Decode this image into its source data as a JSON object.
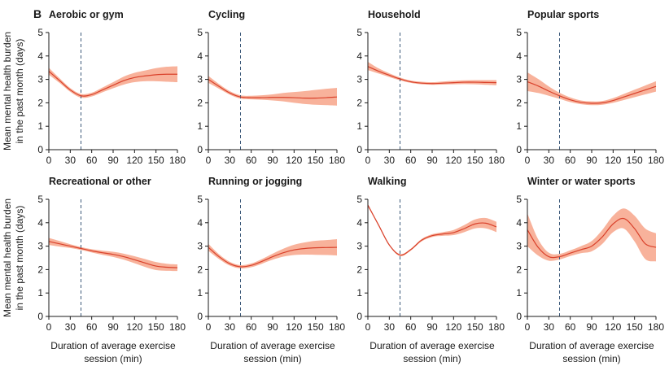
{
  "figure": {
    "panel_letter": "B",
    "x_ticks": [
      "0",
      "30",
      "60",
      "90",
      "120",
      "150",
      "180"
    ],
    "y_ticks": [
      "0",
      "1",
      "2",
      "3",
      "4",
      "5"
    ],
    "ylabel_lines": [
      "Mean mental health burden",
      "in the past month (days)"
    ],
    "xlabel_lines": [
      "Duration of average exercise",
      "session (min)"
    ],
    "colors": {
      "band": "#f7a58a",
      "line": "#d9412b",
      "reference": "#3d5a7a",
      "axis": "#1a1a1a"
    }
  },
  "chart_data": [
    {
      "type": "line",
      "title": "Aerobic or gym",
      "xlim": [
        0,
        180
      ],
      "ylim": [
        0,
        5
      ],
      "reference_x": 45,
      "x": [
        0,
        15,
        30,
        45,
        60,
        75,
        90,
        105,
        120,
        135,
        150,
        165,
        180
      ],
      "y": [
        3.35,
        2.95,
        2.55,
        2.3,
        2.35,
        2.55,
        2.75,
        2.95,
        3.08,
        3.15,
        3.2,
        3.22,
        3.22
      ],
      "lower": [
        3.2,
        2.85,
        2.47,
        2.22,
        2.27,
        2.45,
        2.62,
        2.78,
        2.88,
        2.92,
        2.92,
        2.9,
        2.88
      ],
      "upper": [
        3.5,
        3.05,
        2.63,
        2.38,
        2.43,
        2.65,
        2.88,
        3.12,
        3.28,
        3.38,
        3.48,
        3.54,
        3.56
      ]
    },
    {
      "type": "line",
      "title": "Cycling",
      "xlim": [
        0,
        180
      ],
      "ylim": [
        0,
        5
      ],
      "reference_x": 45,
      "x": [
        0,
        15,
        30,
        45,
        60,
        75,
        90,
        105,
        120,
        135,
        150,
        165,
        180
      ],
      "y": [
        3.0,
        2.7,
        2.42,
        2.25,
        2.22,
        2.22,
        2.23,
        2.23,
        2.22,
        2.2,
        2.2,
        2.22,
        2.25
      ],
      "lower": [
        2.85,
        2.6,
        2.35,
        2.18,
        2.15,
        2.13,
        2.1,
        2.06,
        2.0,
        1.95,
        1.92,
        1.9,
        1.88
      ],
      "upper": [
        3.15,
        2.8,
        2.5,
        2.32,
        2.3,
        2.32,
        2.36,
        2.42,
        2.46,
        2.5,
        2.55,
        2.6,
        2.64
      ]
    },
    {
      "type": "line",
      "title": "Household",
      "xlim": [
        0,
        180
      ],
      "ylim": [
        0,
        5
      ],
      "reference_x": 45,
      "x": [
        0,
        15,
        30,
        45,
        60,
        75,
        90,
        105,
        120,
        135,
        150,
        165,
        180
      ],
      "y": [
        3.55,
        3.35,
        3.18,
        3.02,
        2.9,
        2.84,
        2.82,
        2.84,
        2.86,
        2.88,
        2.88,
        2.87,
        2.86
      ],
      "lower": [
        3.4,
        3.25,
        3.1,
        2.96,
        2.85,
        2.79,
        2.77,
        2.78,
        2.79,
        2.8,
        2.79,
        2.77,
        2.75
      ],
      "upper": [
        3.75,
        3.47,
        3.26,
        3.08,
        2.95,
        2.9,
        2.88,
        2.91,
        2.94,
        2.96,
        2.97,
        2.97,
        2.97
      ]
    },
    {
      "type": "line",
      "title": "Popular sports",
      "xlim": [
        0,
        180
      ],
      "ylim": [
        0,
        5
      ],
      "reference_x": 45,
      "x": [
        0,
        15,
        30,
        45,
        60,
        75,
        90,
        105,
        120,
        135,
        150,
        165,
        180
      ],
      "y": [
        2.9,
        2.72,
        2.5,
        2.3,
        2.13,
        2.02,
        1.98,
        2.0,
        2.1,
        2.25,
        2.4,
        2.55,
        2.7
      ],
      "lower": [
        2.5,
        2.42,
        2.3,
        2.17,
        2.03,
        1.94,
        1.9,
        1.92,
        2.0,
        2.12,
        2.24,
        2.36,
        2.48
      ],
      "upper": [
        3.3,
        3.02,
        2.7,
        2.43,
        2.23,
        2.1,
        2.06,
        2.08,
        2.2,
        2.38,
        2.56,
        2.74,
        2.92
      ]
    },
    {
      "type": "line",
      "title": "Recreational or other",
      "xlim": [
        0,
        180
      ],
      "ylim": [
        0,
        5
      ],
      "reference_x": 45,
      "x": [
        0,
        15,
        30,
        45,
        60,
        75,
        90,
        105,
        120,
        135,
        150,
        165,
        180
      ],
      "y": [
        3.2,
        3.1,
        3.0,
        2.9,
        2.8,
        2.72,
        2.65,
        2.55,
        2.42,
        2.28,
        2.15,
        2.1,
        2.08
      ],
      "lower": [
        3.05,
        2.98,
        2.92,
        2.84,
        2.73,
        2.63,
        2.54,
        2.42,
        2.27,
        2.11,
        1.98,
        1.95,
        1.94
      ],
      "upper": [
        3.35,
        3.22,
        3.08,
        2.96,
        2.87,
        2.81,
        2.76,
        2.68,
        2.57,
        2.45,
        2.32,
        2.25,
        2.22
      ]
    },
    {
      "type": "line",
      "title": "Running or jogging",
      "xlim": [
        0,
        180
      ],
      "ylim": [
        0,
        5
      ],
      "reference_x": 45,
      "x": [
        0,
        15,
        30,
        45,
        60,
        75,
        90,
        105,
        120,
        135,
        150,
        165,
        180
      ],
      "y": [
        2.95,
        2.55,
        2.25,
        2.12,
        2.18,
        2.35,
        2.55,
        2.72,
        2.84,
        2.9,
        2.93,
        2.94,
        2.95
      ],
      "lower": [
        2.8,
        2.45,
        2.17,
        2.05,
        2.1,
        2.25,
        2.42,
        2.55,
        2.62,
        2.64,
        2.63,
        2.62,
        2.6
      ],
      "upper": [
        3.1,
        2.65,
        2.33,
        2.19,
        2.26,
        2.45,
        2.68,
        2.89,
        3.06,
        3.16,
        3.23,
        3.26,
        3.3
      ]
    },
    {
      "type": "line",
      "title": "Walking",
      "xlim": [
        0,
        180
      ],
      "ylim": [
        0,
        5
      ],
      "reference_x": 45,
      "x": [
        0,
        15,
        30,
        45,
        60,
        75,
        90,
        105,
        120,
        135,
        150,
        165,
        180
      ],
      "y": [
        4.75,
        3.9,
        3.05,
        2.62,
        2.85,
        3.25,
        3.45,
        3.52,
        3.58,
        3.75,
        3.95,
        3.98,
        3.82
      ],
      "lower": [
        4.7,
        3.86,
        3.02,
        2.58,
        2.81,
        3.2,
        3.39,
        3.44,
        3.47,
        3.6,
        3.76,
        3.76,
        3.6
      ],
      "upper": [
        4.8,
        3.94,
        3.08,
        2.66,
        2.89,
        3.3,
        3.51,
        3.6,
        3.69,
        3.9,
        4.14,
        4.2,
        4.04
      ]
    },
    {
      "type": "line",
      "title": "Winter or water sports",
      "xlim": [
        0,
        180
      ],
      "ylim": [
        0,
        5
      ],
      "reference_x": 45,
      "x": [
        0,
        15,
        30,
        45,
        60,
        75,
        90,
        105,
        120,
        135,
        150,
        165,
        180
      ],
      "y": [
        3.7,
        2.95,
        2.55,
        2.55,
        2.7,
        2.85,
        3.0,
        3.4,
        3.95,
        4.18,
        3.75,
        3.1,
        2.95
      ],
      "lower": [
        3.0,
        2.6,
        2.38,
        2.43,
        2.58,
        2.7,
        2.78,
        3.1,
        3.6,
        3.75,
        3.2,
        2.45,
        2.35
      ],
      "upper": [
        4.4,
        3.3,
        2.72,
        2.67,
        2.82,
        3.0,
        3.22,
        3.7,
        4.3,
        4.61,
        4.3,
        3.75,
        3.55
      ]
    }
  ]
}
